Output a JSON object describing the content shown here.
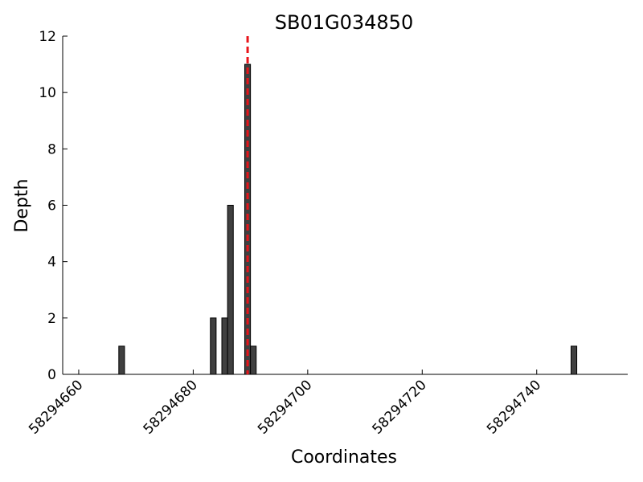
{
  "chart_data": {
    "type": "bar",
    "title": "SB01G034850",
    "xlabel": "Coordinates",
    "ylabel": "Depth",
    "x": [
      58294667,
      58294683,
      58294685,
      58294686,
      58294689,
      58294690,
      58294746
    ],
    "values": [
      1,
      2,
      2,
      6,
      11,
      1,
      1
    ],
    "bar_width": 1,
    "color": "#404040",
    "reference_line": {
      "x": 58294689.5,
      "color": "#e8141a"
    },
    "xlim": [
      58294657.2,
      58294755.9
    ],
    "xticks": [
      58294660,
      58294680,
      58294700,
      58294720,
      58294740
    ],
    "ylim": [
      0,
      12
    ],
    "yticks": [
      0,
      2,
      4,
      6,
      8,
      10,
      12
    ],
    "grid": false
  }
}
